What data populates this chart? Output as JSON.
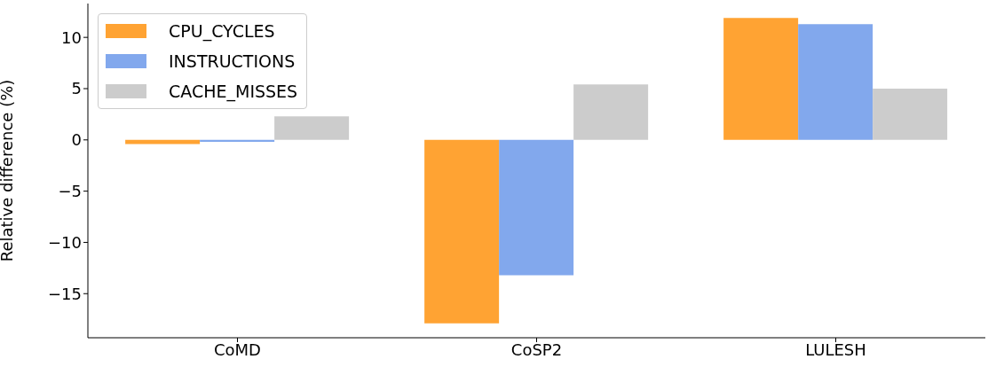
{
  "chart_data": {
    "type": "bar",
    "ylabel": "Relative difference (%)",
    "categories": [
      "CoMD",
      "CoSP2",
      "LULESH"
    ],
    "series": [
      {
        "name": "CPU_CYCLES",
        "color": "#ffa333",
        "values": [
          -0.4,
          -17.9,
          11.9
        ]
      },
      {
        "name": "INSTRUCTIONS",
        "color": "#82a8ed",
        "values": [
          -0.2,
          -13.2,
          11.3
        ]
      },
      {
        "name": "CACHE_MISSES",
        "color": "#cccccc",
        "values": [
          2.3,
          5.4,
          5.0
        ]
      }
    ],
    "ylim": [
      -19.3,
      13.3
    ],
    "yticks": [
      -15,
      -10,
      -5,
      0,
      5,
      10
    ],
    "grid": false,
    "legend": "top left"
  }
}
